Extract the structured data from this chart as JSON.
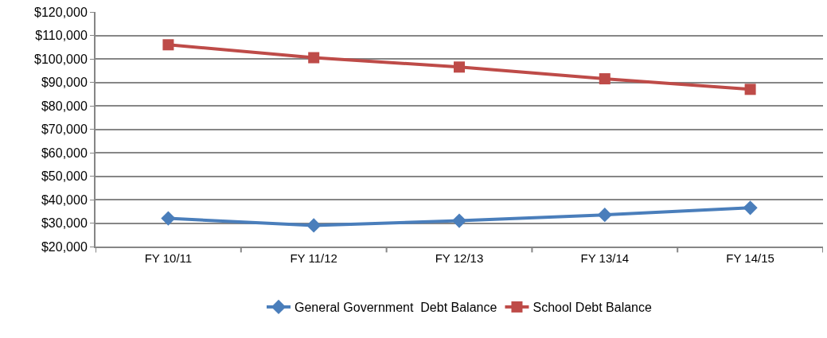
{
  "chart_data": {
    "type": "line",
    "categories": [
      "FY 10/11",
      "FY 11/12",
      "FY 12/13",
      "FY 13/14",
      "FY 14/15"
    ],
    "series": [
      {
        "name": "General Government  Debt Balance",
        "color": "#4a7ebb",
        "marker": "diamond",
        "values": [
          32000,
          29000,
          31000,
          33500,
          36500
        ]
      },
      {
        "name": "School Debt Balance",
        "color": "#be4b48",
        "marker": "square",
        "values": [
          106000,
          100500,
          96500,
          91500,
          87000
        ]
      }
    ],
    "ylim": [
      20000,
      120000
    ],
    "yticks": [
      {
        "value": 20000,
        "label": "$20,000"
      },
      {
        "value": 30000,
        "label": "$30,000"
      },
      {
        "value": 40000,
        "label": "$40,000"
      },
      {
        "value": 50000,
        "label": "$50,000"
      },
      {
        "value": 60000,
        "label": "$60,000"
      },
      {
        "value": 70000,
        "label": "$70,000"
      },
      {
        "value": 80000,
        "label": "$80,000"
      },
      {
        "value": 90000,
        "label": "$90,000"
      },
      {
        "value": 100000,
        "label": "$100,000"
      },
      {
        "value": 110000,
        "label": "$110,000"
      },
      {
        "value": 120000,
        "label": "$120,000"
      }
    ],
    "grid": "y",
    "legend": "bottom",
    "line_style": "solid"
  }
}
